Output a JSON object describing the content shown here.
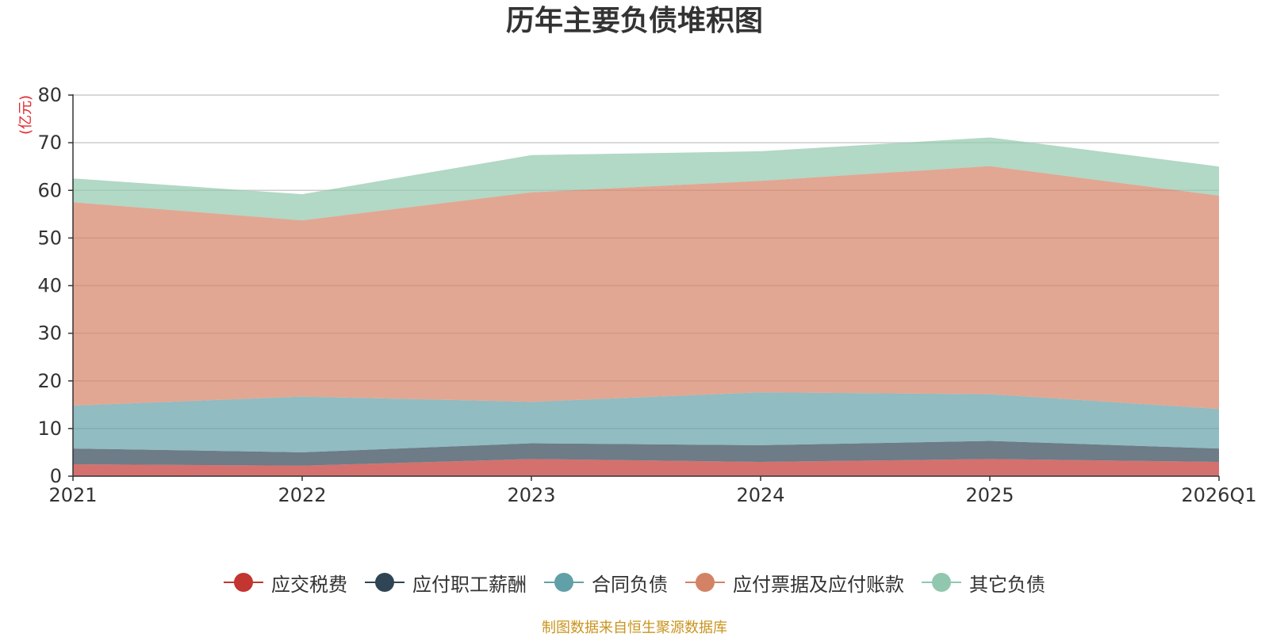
{
  "chart_data": {
    "type": "area",
    "stacked": true,
    "title": "历年主要负债堆积图",
    "unit_label": "(亿元)",
    "categories": [
      "2021",
      "2022",
      "2023",
      "2024",
      "2025",
      "2026Q1"
    ],
    "ylim": [
      0,
      80
    ],
    "yticks": [
      0,
      10,
      20,
      30,
      40,
      50,
      60,
      70,
      80
    ],
    "grid": true,
    "legend_position": "bottom",
    "series": [
      {
        "name": "应交税费",
        "color": "#c23531",
        "values": [
          2.5,
          2.2,
          3.6,
          3.0,
          3.6,
          3.0
        ]
      },
      {
        "name": "应付职工薪酬",
        "color": "#2f4554",
        "values": [
          3.3,
          2.8,
          3.3,
          3.5,
          3.8,
          2.8
        ]
      },
      {
        "name": "合同负债",
        "color": "#61a0a8",
        "values": [
          9.0,
          11.7,
          8.7,
          11.1,
          9.8,
          8.3
        ]
      },
      {
        "name": "应付票据及应付账款",
        "color": "#d48265",
        "values": [
          42.7,
          37.0,
          44.0,
          44.4,
          47.9,
          44.8
        ]
      },
      {
        "name": "其它负债",
        "color": "#91c7ae",
        "values": [
          5.0,
          5.5,
          7.8,
          6.2,
          6.0,
          6.1
        ]
      }
    ]
  },
  "footer": {
    "source": "制图数据来自恒生聚源数据库"
  }
}
